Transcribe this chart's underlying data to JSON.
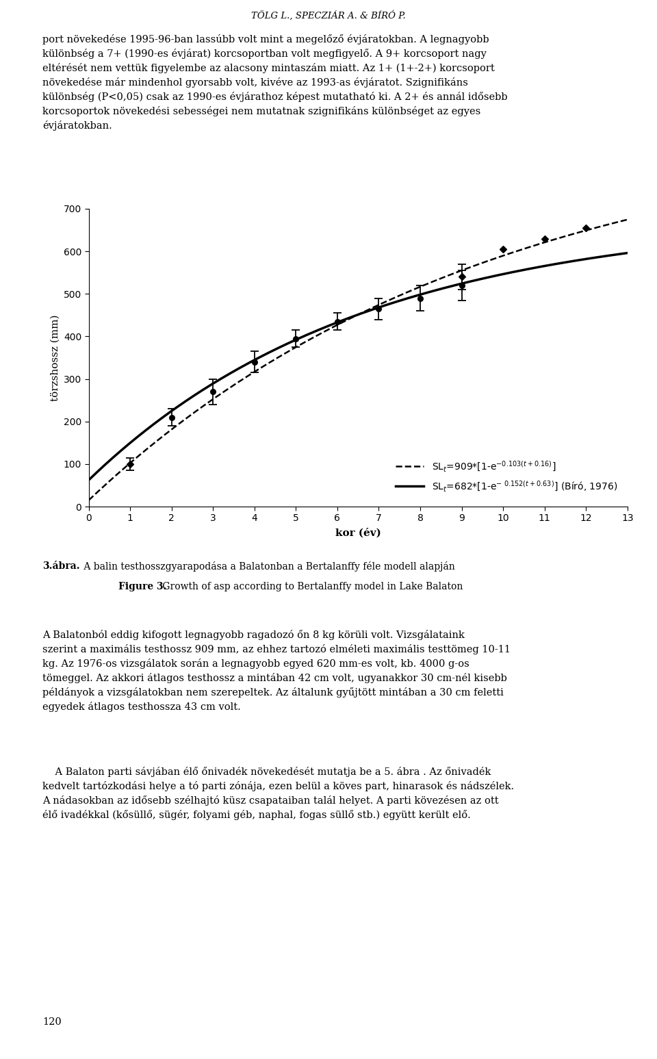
{
  "title_header": "TÖLG L., SPECZIÁR A. & BÍRÓ P.",
  "ylabel": "törzshossz (mm)",
  "xlabel": "kor (év)",
  "xlim": [
    0,
    13
  ],
  "ylim": [
    0,
    700
  ],
  "xticks": [
    0,
    1,
    2,
    3,
    4,
    5,
    6,
    7,
    8,
    9,
    10,
    11,
    12,
    13
  ],
  "yticks": [
    0,
    100,
    200,
    300,
    400,
    500,
    600,
    700
  ],
  "vb_params": {
    "Linf": 909,
    "K": 0.103,
    "t0": 0.16
  },
  "biro_params": {
    "Linf": 682,
    "K": 0.152,
    "t0": 0.63
  },
  "circle_ages": [
    2,
    3,
    4,
    5,
    6,
    7,
    8,
    9
  ],
  "circle_means": [
    210,
    270,
    340,
    395,
    435,
    465,
    490,
    520
  ],
  "circle_errors": [
    20,
    30,
    25,
    20,
    20,
    25,
    30,
    35
  ],
  "diamond_ages": [
    1,
    9,
    10,
    11,
    12
  ],
  "diamond_means": [
    100,
    540,
    605,
    630,
    655
  ],
  "diamond_errors": [
    15,
    30,
    0,
    0,
    0
  ],
  "legend_dashed": "SL$_t$=909*[1-e$^{-0.103(t+0.16)}$]",
  "legend_solid": "SL$_t$=682*[1-e$^{-\\ 0.152(t+0.63)}$] (Bíró, 1976)",
  "caption_bold": "3.ábra.",
  "caption_rest": " A balin testhosszgyarapodása a Balatonban a Bertalanffy féle modell alapján",
  "caption_en_bold": "Figure 3.",
  "caption_en_rest": " Growth of asp according to Bertalanffy model in Lake Balaton",
  "body_above": "port növekedése 1995-96-ban lassúbb volt mint a megelőző évjáratokban. A legnagyobb\nkülönbség a 7+ (1990-es évjárat) korcsoportban volt megfigyelő. A 9+ korcsoport nagy\neltérését nem vettük figyelembe az alacsony mintaszám miatt. Az 1+ (1+-2+) korcsoport\nnövekedése már mindenhol gyorsabb volt, kivéve az 1993-as évjáratot. Szignifikáns\nkülönbség (P<0,05) csak az 1990-es évjárathoz képest mutatható ki. A 2+ és annál idősebb\nkorcsoportok növekedési sebességei nem mutatnak szignifikáns különbséget az egyes\névjáratokban.",
  "body_below_p1": "A Balatonból eddig kifogott legnagyobb ragadozó őn 8 kg körüli volt. Vizsgálataink\nszerint a maximális testhossz 909 mm, az ehhez tartozó elméleti maximális testtömeg 10-11\nkg. Az 1976-os vizsgálatok során a legnagyobb egyed 620 mm-es volt, kb. 4000 g-os\ntömeggel. Az akkori átlagos testhossz a mintában 42 cm volt, ugyanakkor 30 cm-nél kisebb\npéldányok a vizsgálatokban nem szerepeltek. Az általunk gyűjtött mintában a 30 cm feletti\negyedek átlagos testhossza 43 cm volt.",
  "body_below_p2": "    A Balaton parti sávjában élő őnivadék növekedését mutatja be a 5. ábra . Az őnivadék\nkedvelt tartózkodási helye a tó parti zónája, ezen belül a köves part, hinarasok és nádszélek.\nA nádasokban az idősebb szélhajtó küsz csapataiban talál helyet. A parti kövezésen az ott\nélő ivadékkal (kősüllő, sügér, folyami géb, naphal, fogas süllő stb.) együtt került elő.",
  "page_number": "120",
  "background_color": "#ffffff"
}
